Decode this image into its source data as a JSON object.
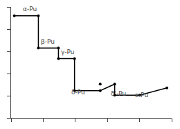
{
  "chart_data": {
    "type": "line",
    "series": [
      {
        "type": "line",
        "color": "#000000",
        "x": [
          0.02,
          0.17,
          0.17,
          0.295,
          0.295,
          0.395,
          0.395,
          0.555,
          0.645,
          0.645,
          0.8,
          0.97
        ],
        "values": [
          0.92,
          0.92,
          0.63,
          0.63,
          0.535,
          0.535,
          0.245,
          0.245,
          0.305,
          0.205,
          0.205,
          0.27
        ]
      },
      {
        "type": "scatter",
        "color": "#000000",
        "marker": "circle",
        "x": [
          0.02,
          0.17,
          0.17,
          0.295,
          0.295,
          0.395,
          0.395,
          0.555,
          0.555,
          0.645,
          0.645,
          0.8,
          0.97
        ],
        "values": [
          0.92,
          0.92,
          0.63,
          0.63,
          0.535,
          0.535,
          0.245,
          0.245,
          0.305,
          0.305,
          0.205,
          0.205,
          0.27
        ]
      }
    ],
    "annotations": [
      {
        "text": "α-Pu",
        "x": 0.065,
        "y": 0.935
      },
      {
        "text": "β-Pu",
        "x": 0.175,
        "y": 0.645
      },
      {
        "text": "γ-Pu",
        "x": 0.3,
        "y": 0.548
      },
      {
        "text": "δ-Pu",
        "x": 0.365,
        "y": 0.19
      },
      {
        "text": "δ'-Pu",
        "x": 0.61,
        "y": 0.175
      },
      {
        "text": "ε-Pu",
        "x": 0.765,
        "y": 0.165
      }
    ],
    "xlim": [
      0,
      1
    ],
    "ylim": [
      0,
      1
    ],
    "xticks": [
      0.0,
      0.2,
      0.4,
      0.6,
      0.8,
      1.0
    ],
    "yticks": [
      0.0,
      0.2,
      0.4,
      0.6,
      0.8,
      1.0
    ],
    "grid": false,
    "tick_labels": false
  }
}
